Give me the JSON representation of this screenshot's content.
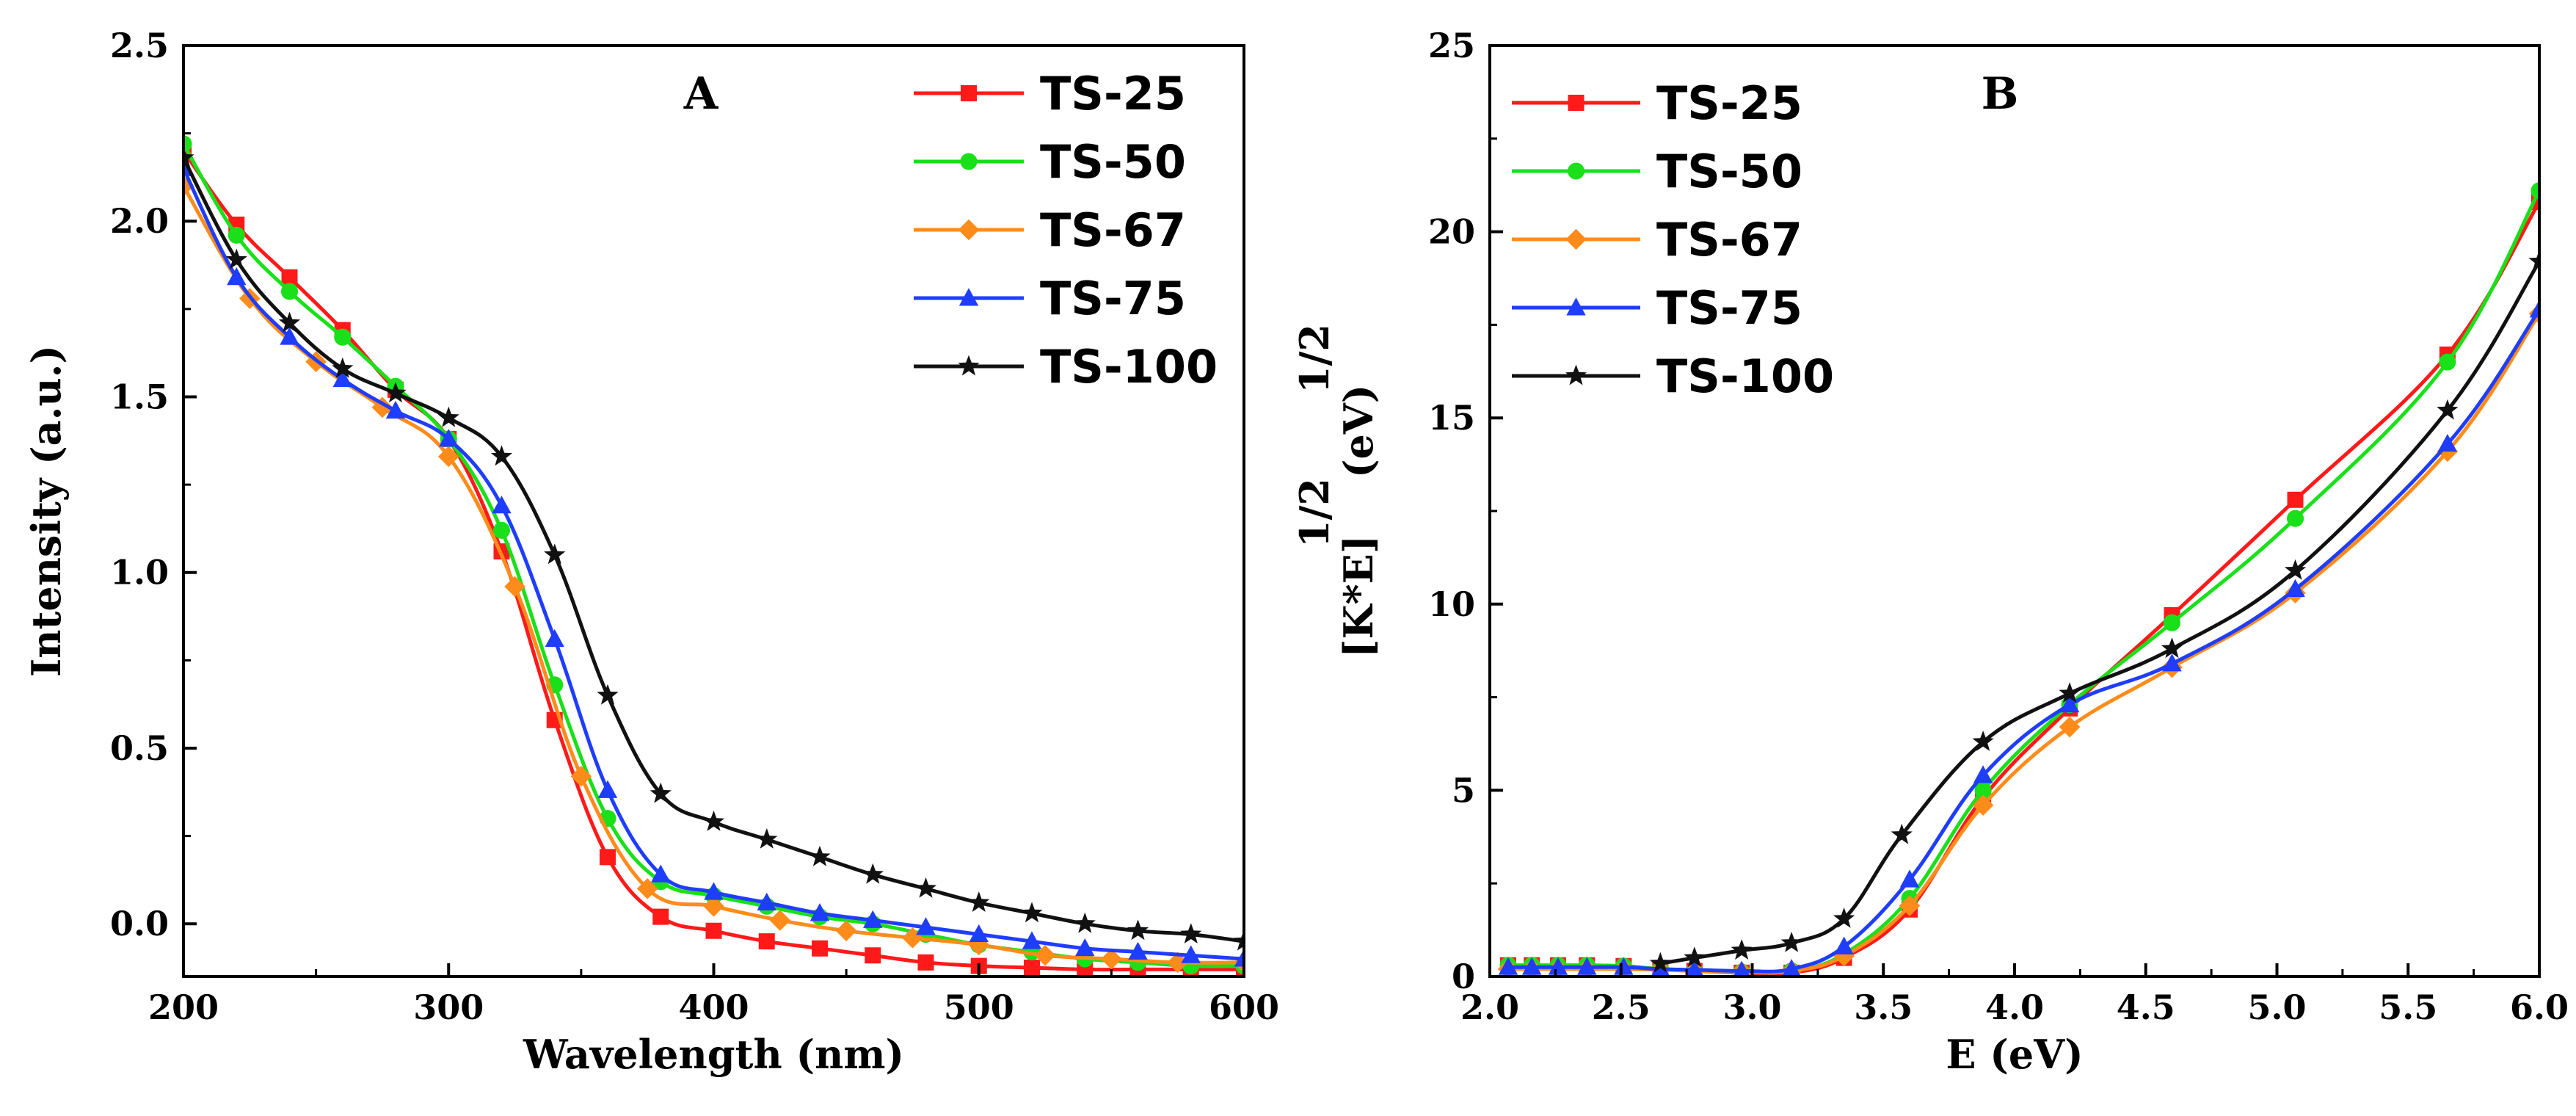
{
  "chart_data": [
    {
      "type": "line",
      "panel_label": "A",
      "xlabel": "Wavelength (nm)",
      "ylabel": "Intensity (a.u.)",
      "xlim": [
        200,
        600
      ],
      "ylim": [
        -0.15,
        2.5
      ],
      "xticks": [
        200,
        300,
        400,
        500,
        600
      ],
      "yticks": [
        0.0,
        0.5,
        1.0,
        1.5,
        2.0,
        2.5
      ],
      "ytick_labels": [
        "0.0",
        "0.5",
        "1.0",
        "1.5",
        "2.0",
        "2.5"
      ],
      "legend_position": "top-right",
      "series": [
        {
          "name": "TS-25",
          "color": "#ff1a1a",
          "marker": "square",
          "x": [
            200,
            220,
            240,
            260,
            280,
            300,
            320,
            340,
            360,
            380,
            400,
            420,
            440,
            460,
            480,
            500,
            520,
            540,
            560,
            580,
            600
          ],
          "y": [
            2.2,
            1.99,
            1.84,
            1.69,
            1.52,
            1.38,
            1.06,
            0.58,
            0.19,
            0.02,
            -0.02,
            -0.05,
            -0.07,
            -0.09,
            -0.11,
            -0.12,
            -0.125,
            -0.13,
            -0.13,
            -0.13,
            -0.13
          ]
        },
        {
          "name": "TS-50",
          "color": "#19e019",
          "marker": "circle",
          "x": [
            200,
            220,
            240,
            260,
            280,
            300,
            320,
            340,
            360,
            380,
            400,
            420,
            440,
            460,
            480,
            500,
            520,
            540,
            560,
            580,
            600
          ],
          "y": [
            2.22,
            1.96,
            1.8,
            1.67,
            1.53,
            1.38,
            1.12,
            0.68,
            0.3,
            0.12,
            0.08,
            0.05,
            0.02,
            0.0,
            -0.03,
            -0.06,
            -0.08,
            -0.1,
            -0.11,
            -0.12,
            -0.12
          ]
        },
        {
          "name": "TS-67",
          "color": "#ff8c1a",
          "marker": "diamond",
          "x": [
            200,
            225,
            250,
            275,
            300,
            325,
            350,
            375,
            400,
            425,
            450,
            475,
            500,
            525,
            550,
            575,
            600
          ],
          "y": [
            2.1,
            1.78,
            1.6,
            1.47,
            1.33,
            0.96,
            0.42,
            0.1,
            0.05,
            0.01,
            -0.02,
            -0.04,
            -0.06,
            -0.09,
            -0.1,
            -0.11,
            -0.11
          ]
        },
        {
          "name": "TS-75",
          "color": "#1f3dff",
          "marker": "triangle",
          "x": [
            200,
            220,
            240,
            260,
            280,
            300,
            320,
            340,
            360,
            380,
            400,
            420,
            440,
            460,
            480,
            500,
            520,
            540,
            560,
            580,
            600
          ],
          "y": [
            2.15,
            1.84,
            1.67,
            1.55,
            1.46,
            1.38,
            1.19,
            0.81,
            0.38,
            0.14,
            0.09,
            0.06,
            0.03,
            0.01,
            -0.01,
            -0.03,
            -0.05,
            -0.07,
            -0.08,
            -0.09,
            -0.1
          ]
        },
        {
          "name": "TS-100",
          "color": "#111111",
          "marker": "star",
          "x": [
            200,
            220,
            240,
            260,
            280,
            300,
            320,
            340,
            360,
            380,
            400,
            420,
            440,
            460,
            480,
            500,
            520,
            540,
            560,
            580,
            600
          ],
          "y": [
            2.18,
            1.89,
            1.71,
            1.58,
            1.51,
            1.44,
            1.33,
            1.05,
            0.65,
            0.37,
            0.29,
            0.24,
            0.19,
            0.14,
            0.1,
            0.06,
            0.03,
            0.0,
            -0.02,
            -0.03,
            -0.05
          ]
        }
      ]
    },
    {
      "type": "line",
      "panel_label": "B",
      "xlabel": "E (eV)",
      "ylabel_main": "[K*E]",
      "ylabel_sup1": "1/2",
      "ylabel_unit": "(eV)",
      "ylabel_sup2": "1/2",
      "xlim": [
        2.0,
        6.0
      ],
      "ylim": [
        0,
        25
      ],
      "xticks": [
        2.0,
        2.5,
        3.0,
        3.5,
        4.0,
        4.5,
        5.0,
        5.5,
        6.0
      ],
      "xtick_labels": [
        "2.0",
        "2.5",
        "3.0",
        "3.5",
        "4.0",
        "4.5",
        "5.0",
        "5.5",
        "6.0"
      ],
      "yticks": [
        0,
        5,
        10,
        15,
        20,
        25
      ],
      "ytick_labels": [
        "0",
        "5",
        "10",
        "15",
        "20",
        "25"
      ],
      "legend_position": "top-left",
      "series": [
        {
          "name": "TS-25",
          "color": "#ff1a1a",
          "marker": "square",
          "x": [
            2.07,
            2.16,
            2.26,
            2.37,
            2.51,
            2.65,
            2.78,
            2.96,
            3.15,
            3.35,
            3.6,
            3.88,
            4.21,
            4.6,
            5.07,
            5.65,
            6.0
          ],
          "y": [
            0.3,
            0.3,
            0.3,
            0.3,
            0.28,
            0.2,
            0.15,
            0.1,
            0.1,
            0.5,
            1.8,
            4.8,
            7.2,
            9.7,
            12.8,
            16.7,
            20.8
          ]
        },
        {
          "name": "TS-50",
          "color": "#19e019",
          "marker": "circle",
          "x": [
            2.07,
            2.16,
            2.26,
            2.37,
            2.51,
            2.65,
            2.78,
            2.96,
            3.15,
            3.35,
            3.6,
            3.88,
            4.21,
            4.6,
            5.07,
            5.65,
            6.0
          ],
          "y": [
            0.3,
            0.3,
            0.3,
            0.3,
            0.28,
            0.2,
            0.15,
            0.12,
            0.15,
            0.6,
            2.1,
            5.0,
            7.3,
            9.5,
            12.3,
            16.5,
            21.1
          ]
        },
        {
          "name": "TS-67",
          "color": "#ff8c1a",
          "marker": "diamond",
          "x": [
            2.07,
            2.16,
            2.26,
            2.37,
            2.51,
            2.65,
            2.78,
            2.96,
            3.15,
            3.35,
            3.6,
            3.88,
            4.21,
            4.6,
            5.07,
            5.65,
            6.0
          ],
          "y": [
            0.2,
            0.2,
            0.2,
            0.2,
            0.2,
            0.18,
            0.15,
            0.12,
            0.15,
            0.55,
            1.9,
            4.6,
            6.7,
            8.3,
            10.3,
            14.1,
            17.8
          ]
        },
        {
          "name": "TS-75",
          "color": "#1f3dff",
          "marker": "triangle",
          "x": [
            2.07,
            2.16,
            2.26,
            2.37,
            2.51,
            2.65,
            2.78,
            2.96,
            3.15,
            3.35,
            3.6,
            3.88,
            4.21,
            4.6,
            5.07,
            5.65,
            6.0
          ],
          "y": [
            0.25,
            0.25,
            0.25,
            0.25,
            0.25,
            0.2,
            0.18,
            0.15,
            0.2,
            0.8,
            2.6,
            5.4,
            7.3,
            8.4,
            10.4,
            14.3,
            17.9
          ]
        },
        {
          "name": "TS-100",
          "color": "#111111",
          "marker": "star",
          "x": [
            2.65,
            2.78,
            2.96,
            3.15,
            3.35,
            3.57,
            3.88,
            4.21,
            4.6,
            5.07,
            5.65,
            6.0
          ],
          "y": [
            0.35,
            0.5,
            0.7,
            0.9,
            1.55,
            3.8,
            6.3,
            7.6,
            8.8,
            10.9,
            15.2,
            19.2
          ]
        }
      ]
    }
  ]
}
